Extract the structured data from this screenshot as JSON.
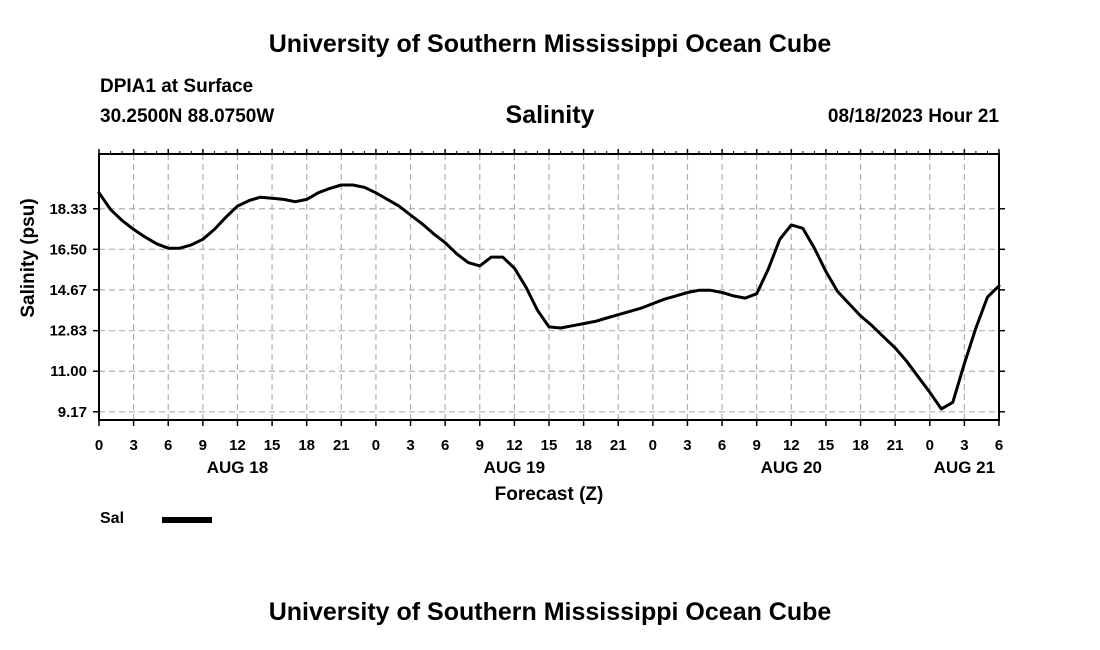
{
  "header": {
    "top_title": "University of Southern Mississippi Ocean Cube",
    "station": "DPIA1 at Surface",
    "coordinates": "30.2500N  88.0750W",
    "parameter": "Salinity",
    "datetime": "08/18/2023 Hour 21",
    "bottom_title": "University of Southern Mississippi Ocean Cube"
  },
  "legend": {
    "label": "Sal"
  },
  "chart_data": {
    "type": "line",
    "title": "Salinity",
    "xlabel": "Forecast (Z)",
    "ylabel": "Salinity (psu)",
    "xlim": [
      0,
      78
    ],
    "ylim": [
      8.8,
      20.8
    ],
    "grid": true,
    "legend_position": "bottom-left",
    "yticks": [
      9.17,
      11.0,
      12.83,
      14.67,
      16.5,
      18.33
    ],
    "ytick_labels": [
      "9.17",
      "11.00",
      "12.83",
      "14.67",
      "16.50",
      "18.33"
    ],
    "xtick_hours": [
      0,
      3,
      6,
      9,
      12,
      15,
      18,
      21,
      24,
      27,
      30,
      33,
      36,
      39,
      42,
      45,
      48,
      51,
      54,
      57,
      60,
      63,
      66,
      69,
      72,
      75,
      78
    ],
    "xtick_labels": [
      "0",
      "3",
      "6",
      "9",
      "12",
      "15",
      "18",
      "21",
      "0",
      "3",
      "6",
      "9",
      "12",
      "15",
      "18",
      "21",
      "0",
      "3",
      "6",
      "9",
      "12",
      "15",
      "18",
      "21",
      "0",
      "3",
      "6"
    ],
    "date_labels": [
      {
        "hour": 12,
        "label": "AUG 18"
      },
      {
        "hour": 36,
        "label": "AUG 19"
      },
      {
        "hour": 60,
        "label": "AUG 20"
      },
      {
        "hour": 75,
        "label": "AUG 21"
      }
    ],
    "series": [
      {
        "name": "Sal",
        "x": [
          0,
          1,
          2,
          3,
          4,
          5,
          6,
          7,
          8,
          9,
          10,
          11,
          12,
          13,
          14,
          15,
          16,
          17,
          18,
          19,
          20,
          21,
          22,
          23,
          24,
          25,
          26,
          27,
          28,
          29,
          30,
          31,
          32,
          33,
          34,
          35,
          36,
          37,
          38,
          39,
          40,
          41,
          42,
          43,
          44,
          45,
          46,
          47,
          48,
          49,
          50,
          51,
          52,
          53,
          54,
          55,
          56,
          57,
          58,
          59,
          60,
          61,
          62,
          63,
          64,
          65,
          66,
          67,
          68,
          69,
          70,
          71,
          72,
          73,
          74,
          75,
          76,
          77,
          78
        ],
        "values": [
          19.05,
          18.3,
          17.8,
          17.4,
          17.05,
          16.75,
          16.55,
          16.55,
          16.7,
          16.95,
          17.4,
          17.95,
          18.45,
          18.7,
          18.85,
          18.8,
          18.75,
          18.65,
          18.75,
          19.05,
          19.25,
          19.4,
          19.4,
          19.3,
          19.05,
          18.75,
          18.45,
          18.05,
          17.65,
          17.2,
          16.8,
          16.3,
          15.9,
          15.75,
          16.15,
          16.15,
          15.65,
          14.8,
          13.75,
          13.0,
          12.95,
          13.05,
          13.15,
          13.25,
          13.4,
          13.55,
          13.7,
          13.85,
          14.05,
          14.25,
          14.4,
          14.55,
          14.65,
          14.65,
          14.55,
          14.4,
          14.3,
          14.5,
          15.6,
          16.95,
          17.6,
          17.45,
          16.55,
          15.5,
          14.6,
          14.05,
          13.5,
          13.05,
          12.55,
          12.05,
          11.45,
          10.75,
          10.05,
          9.3,
          9.6,
          11.35,
          12.95,
          14.35,
          14.85
        ]
      }
    ]
  }
}
